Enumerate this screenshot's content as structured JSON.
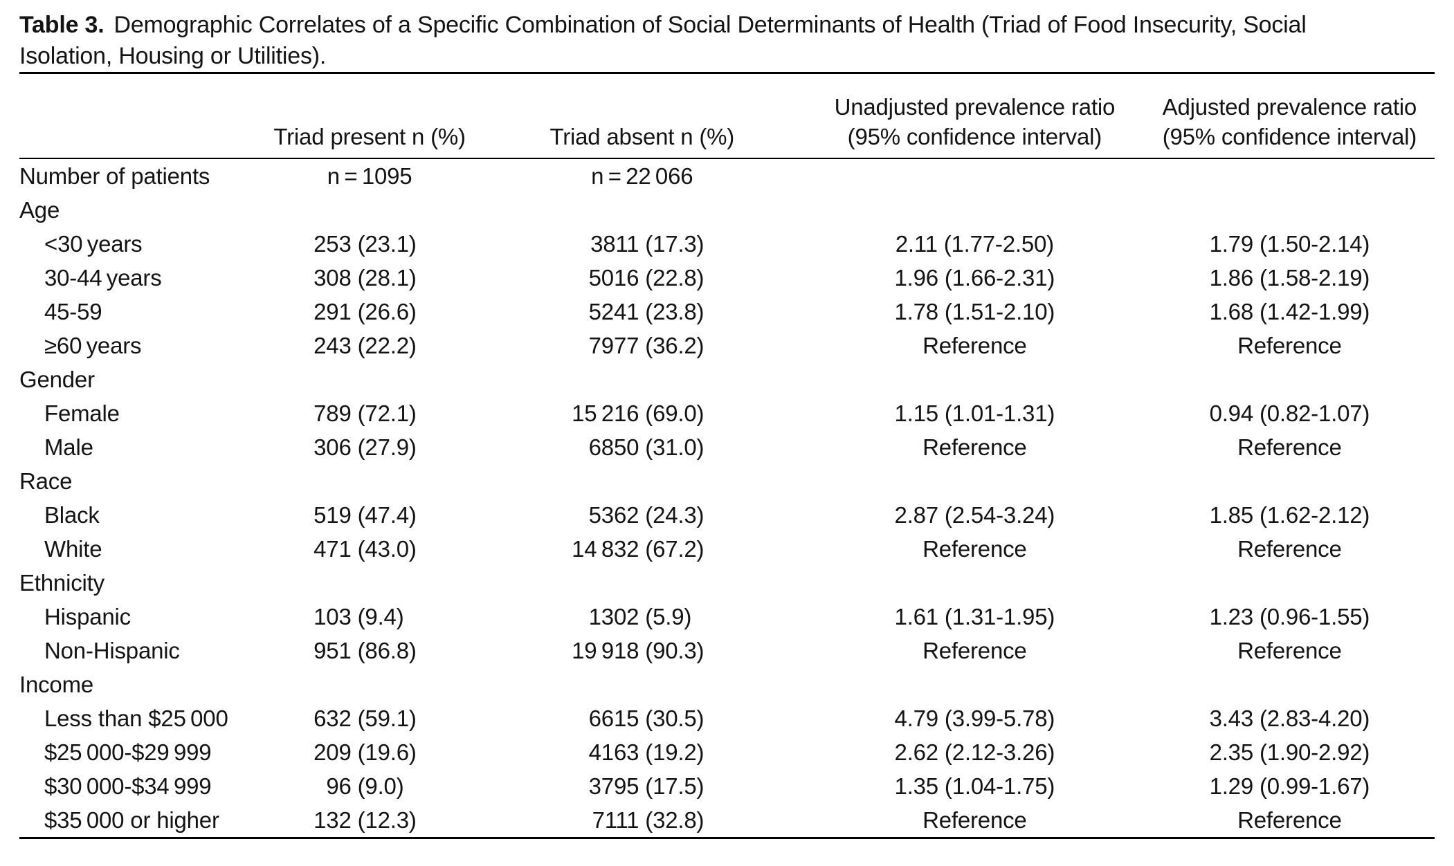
{
  "caption": {
    "label": "Table 3.",
    "line1": "Demographic Correlates of a Specific Combination of Social Determinants of Health (Triad of Food Insecurity, Social",
    "line2": "Isolation, Housing or Utilities)."
  },
  "header": {
    "col_label": "",
    "present": "Triad present n (%)",
    "absent": "Triad absent n (%)",
    "unadjusted_line1": "Unadjusted prevalence ratio",
    "unadjusted_line2": "(95% confidence interval)",
    "adjusted_line1": "Adjusted prevalence ratio",
    "adjusted_line2": "(95% confidence interval)"
  },
  "rows": [
    {
      "type": "n",
      "label": "Number of patients",
      "present": "n = 1095",
      "absent": "n = 22 066"
    },
    {
      "type": "section",
      "label": "Age"
    },
    {
      "type": "item",
      "label": "<30 years",
      "present": {
        "n": "253",
        "p": "(23.1)"
      },
      "absent": {
        "n": "3811",
        "p": "(17.3)"
      },
      "unadjusted": "2.11 (1.77-2.50)",
      "adjusted": "1.79 (1.50-2.14)"
    },
    {
      "type": "item",
      "label": "30-44 years",
      "present": {
        "n": "308",
        "p": "(28.1)"
      },
      "absent": {
        "n": "5016",
        "p": "(22.8)"
      },
      "unadjusted": "1.96 (1.66-2.31)",
      "adjusted": "1.86 (1.58-2.19)"
    },
    {
      "type": "item",
      "label": "45-59",
      "present": {
        "n": "291",
        "p": "(26.6)"
      },
      "absent": {
        "n": "5241",
        "p": "(23.8)"
      },
      "unadjusted": "1.78 (1.51-2.10)",
      "adjusted": "1.68 (1.42-1.99)"
    },
    {
      "type": "item",
      "label": "≥60 years",
      "present": {
        "n": "243",
        "p": "(22.2)"
      },
      "absent": {
        "n": "7977",
        "p": "(36.2)"
      },
      "unadjusted": "Reference",
      "adjusted": "Reference"
    },
    {
      "type": "section",
      "label": "Gender"
    },
    {
      "type": "item",
      "label": "Female",
      "present": {
        "n": "789",
        "p": "(72.1)"
      },
      "absent": {
        "n": "15 216",
        "p": "(69.0)"
      },
      "unadjusted": "1.15 (1.01-1.31)",
      "adjusted": "0.94 (0.82-1.07)"
    },
    {
      "type": "item",
      "label": "Male",
      "present": {
        "n": "306",
        "p": "(27.9)"
      },
      "absent": {
        "n": "6850",
        "p": "(31.0)"
      },
      "unadjusted": "Reference",
      "adjusted": "Reference"
    },
    {
      "type": "section",
      "label": "Race"
    },
    {
      "type": "item",
      "label": "Black",
      "present": {
        "n": "519",
        "p": "(47.4)"
      },
      "absent": {
        "n": "5362",
        "p": "(24.3)"
      },
      "unadjusted": "2.87 (2.54-3.24)",
      "adjusted": "1.85 (1.62-2.12)"
    },
    {
      "type": "item",
      "label": "White",
      "present": {
        "n": "471",
        "p": "(43.0)"
      },
      "absent": {
        "n": "14 832",
        "p": "(67.2)"
      },
      "unadjusted": "Reference",
      "adjusted": "Reference"
    },
    {
      "type": "section",
      "label": "Ethnicity"
    },
    {
      "type": "item",
      "label": "Hispanic",
      "present": {
        "n": "103",
        "p": "(9.4)"
      },
      "absent": {
        "n": "1302",
        "p": "(5.9)"
      },
      "unadjusted": "1.61 (1.31-1.95)",
      "adjusted": "1.23 (0.96-1.55)"
    },
    {
      "type": "item",
      "label": "Non-Hispanic",
      "present": {
        "n": "951",
        "p": "(86.8)"
      },
      "absent": {
        "n": "19 918",
        "p": "(90.3)"
      },
      "unadjusted": "Reference",
      "adjusted": "Reference"
    },
    {
      "type": "section",
      "label": "Income"
    },
    {
      "type": "item",
      "label": "Less than $25 000",
      "present": {
        "n": "632",
        "p": "(59.1)"
      },
      "absent": {
        "n": "6615",
        "p": "(30.5)"
      },
      "unadjusted": "4.79 (3.99-5.78)",
      "adjusted": "3.43 (2.83-4.20)"
    },
    {
      "type": "item",
      "label": "$25 000-$29 999",
      "present": {
        "n": "209",
        "p": "(19.6)"
      },
      "absent": {
        "n": "4163",
        "p": "(19.2)"
      },
      "unadjusted": "2.62 (2.12-3.26)",
      "adjusted": "2.35 (1.90-2.92)"
    },
    {
      "type": "item",
      "label": "$30 000-$34 999",
      "present": {
        "n": "96",
        "p": "(9.0)"
      },
      "absent": {
        "n": "3795",
        "p": "(17.5)"
      },
      "unadjusted": "1.35 (1.04-1.75)",
      "adjusted": "1.29 (0.99-1.67)"
    },
    {
      "type": "item",
      "label": "$35 000 or higher",
      "present": {
        "n": "132",
        "p": "(12.3)"
      },
      "absent": {
        "n": "7111",
        "p": "(32.8)"
      },
      "unadjusted": "Reference",
      "adjusted": "Reference"
    }
  ]
}
